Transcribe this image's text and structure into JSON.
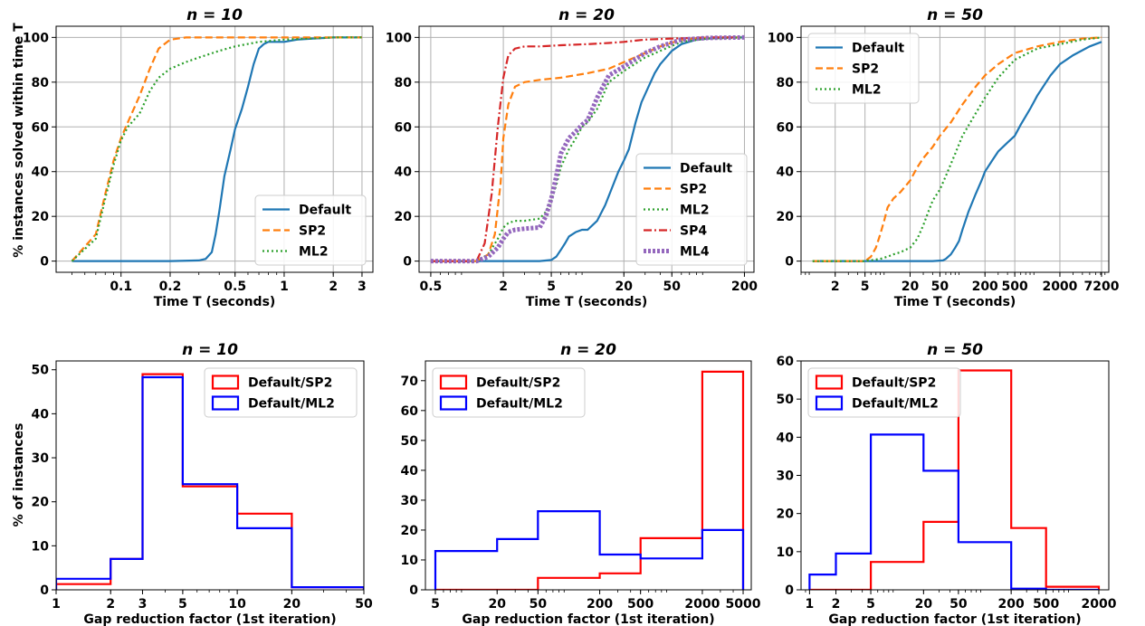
{
  "figure": {
    "ylabel_top": "% instances solved within time T",
    "ylabel_bottom": "% of instances"
  },
  "colors": {
    "Default": "#1f77b4",
    "SP2": "#ff7f0e",
    "ML2": "#2ca02c",
    "SP4": "#d62728",
    "ML4": "#9467bd",
    "Default/SP2": "#ff0000",
    "Default/ML2": "#0000ff"
  },
  "chart_data": [
    {
      "type": "line",
      "title": "n = 10",
      "xlabel": "Time T (seconds)",
      "ylabel": "% instances solved within time T",
      "xscale": "log",
      "xlim": [
        0.04,
        3.5
      ],
      "ylim": [
        -5,
        105
      ],
      "yticks": [
        0,
        20,
        40,
        60,
        80,
        100
      ],
      "xticks": [
        {
          "v": 0.1,
          "l": "0.1"
        },
        {
          "v": 0.2,
          "l": "0.2"
        },
        {
          "v": 0.5,
          "l": "0.5"
        },
        {
          "v": 1,
          "l": "1"
        },
        {
          "v": 2,
          "l": "2"
        },
        {
          "v": 3,
          "l": "3"
        }
      ],
      "grid": true,
      "legend": "lower-right",
      "series": [
        {
          "name": "Default",
          "style": "solid",
          "x": [
            0.05,
            0.1,
            0.2,
            0.3,
            0.33,
            0.36,
            0.38,
            0.4,
            0.43,
            0.47,
            0.5,
            0.55,
            0.6,
            0.65,
            0.7,
            0.75,
            0.8,
            0.9,
            1.0,
            1.2,
            1.5,
            2.0,
            3.0
          ],
          "y": [
            0,
            0,
            0,
            0.3,
            1,
            4,
            12,
            22,
            38,
            50,
            59,
            68,
            78,
            88,
            95,
            97,
            98,
            98,
            98,
            99,
            99.5,
            100,
            100
          ]
        },
        {
          "name": "SP2",
          "style": "dashed",
          "x": [
            0.05,
            0.07,
            0.08,
            0.09,
            0.1,
            0.11,
            0.13,
            0.15,
            0.17,
            0.2,
            0.25,
            0.3,
            0.5,
            1,
            3
          ],
          "y": [
            0,
            12,
            30,
            45,
            55,
            62,
            74,
            86,
            95,
            99,
            100,
            100,
            100,
            100,
            100
          ]
        },
        {
          "name": "ML2",
          "style": "dotted",
          "x": [
            0.05,
            0.07,
            0.08,
            0.09,
            0.1,
            0.11,
            0.13,
            0.15,
            0.17,
            0.2,
            0.25,
            0.3,
            0.4,
            0.5,
            0.7,
            1,
            1.5,
            2,
            3
          ],
          "y": [
            0,
            10,
            28,
            43,
            54,
            60,
            66,
            76,
            82,
            86,
            89,
            91,
            94,
            96,
            98,
            99,
            99.5,
            100,
            100
          ]
        }
      ]
    },
    {
      "type": "line",
      "title": "n = 20",
      "xlabel": "Time T (seconds)",
      "ylabel": "",
      "xscale": "log",
      "xlim": [
        0.4,
        240
      ],
      "ylim": [
        -5,
        105
      ],
      "yticks": [
        0,
        20,
        40,
        60,
        80,
        100
      ],
      "xticks": [
        {
          "v": 0.5,
          "l": "0.5"
        },
        {
          "v": 2,
          "l": "2"
        },
        {
          "v": 5,
          "l": "5"
        },
        {
          "v": 20,
          "l": "20"
        },
        {
          "v": 50,
          "l": "50"
        },
        {
          "v": 200,
          "l": "200"
        }
      ],
      "grid": true,
      "legend": "lower-right",
      "series": [
        {
          "name": "Default",
          "style": "solid",
          "x": [
            0.5,
            2,
            4,
            5,
            5.5,
            6,
            6.5,
            7,
            8,
            9,
            10,
            12,
            14,
            16,
            18,
            20,
            22,
            25,
            28,
            32,
            36,
            40,
            50,
            60,
            80,
            100,
            150,
            200
          ],
          "y": [
            0,
            0,
            0,
            0.5,
            2,
            5,
            8,
            11,
            13,
            14,
            14,
            18,
            25,
            33,
            40,
            45,
            50,
            62,
            71,
            78,
            84,
            88,
            94,
            97,
            99,
            99.5,
            100,
            100
          ]
        },
        {
          "name": "SP2",
          "style": "dashed",
          "x": [
            0.5,
            1.2,
            1.5,
            1.7,
            1.9,
            2.0,
            2.2,
            2.5,
            3,
            4,
            6,
            10,
            15,
            20,
            30,
            40,
            60,
            100,
            200
          ],
          "y": [
            0,
            0,
            3,
            12,
            35,
            55,
            70,
            78,
            80,
            81,
            82,
            84,
            86,
            89,
            93,
            96,
            99,
            100,
            100
          ]
        },
        {
          "name": "ML2",
          "style": "dotted",
          "x": [
            0.5,
            1.2,
            1.5,
            1.8,
            2.0,
            2.2,
            2.5,
            3,
            4,
            4.5,
            5,
            5.5,
            6,
            7,
            8,
            9,
            10,
            12,
            15,
            20,
            30,
            40,
            60,
            100,
            200
          ],
          "y": [
            0,
            0,
            3,
            10,
            15,
            17,
            18,
            18,
            19,
            22,
            27,
            34,
            42,
            50,
            55,
            60,
            62,
            68,
            80,
            85,
            91,
            94,
            98,
            99.5,
            100
          ]
        },
        {
          "name": "SP4",
          "style": "dashdot",
          "x": [
            0.5,
            1.2,
            1.4,
            1.6,
            1.8,
            2.0,
            2.2,
            2.5,
            3,
            4,
            6,
            10,
            15,
            20,
            30,
            50,
            100,
            200
          ],
          "y": [
            0,
            0,
            8,
            30,
            60,
            82,
            92,
            95,
            96,
            96,
            96.5,
            97,
            97.5,
            98,
            99,
            99.5,
            100,
            100
          ]
        },
        {
          "name": "ML4",
          "style": "thick-dotted",
          "x": [
            0.5,
            1.2,
            1.5,
            1.8,
            2.0,
            2.2,
            2.5,
            3,
            4,
            4.5,
            5,
            5.5,
            6,
            7,
            8,
            9,
            10,
            12,
            15,
            20,
            30,
            40,
            60,
            100,
            200
          ],
          "y": [
            0,
            0,
            2,
            6,
            10,
            13,
            14,
            14.5,
            15,
            20,
            28,
            38,
            48,
            55,
            58,
            61,
            63,
            73,
            83,
            87,
            93,
            96,
            99,
            99.8,
            100
          ]
        }
      ]
    },
    {
      "type": "line",
      "title": "n = 50",
      "xlabel": "Time T (seconds)",
      "ylabel": "",
      "xscale": "log",
      "xlim": [
        0.7,
        9000
      ],
      "ylim": [
        -5,
        105
      ],
      "yticks": [
        0,
        20,
        40,
        60,
        80,
        100
      ],
      "xticks": [
        {
          "v": 2,
          "l": "2"
        },
        {
          "v": 5,
          "l": "5"
        },
        {
          "v": 20,
          "l": "20"
        },
        {
          "v": 50,
          "l": "50"
        },
        {
          "v": 200,
          "l": "200"
        },
        {
          "v": 500,
          "l": "500"
        },
        {
          "v": 2000,
          "l": "2000"
        },
        {
          "v": 7200,
          "l": "7200"
        }
      ],
      "grid": true,
      "legend": "upper-left",
      "series": [
        {
          "name": "Default",
          "style": "solid",
          "x": [
            1,
            10,
            40,
            55,
            60,
            70,
            80,
            90,
            100,
            120,
            150,
            180,
            200,
            250,
            300,
            400,
            500,
            600,
            800,
            1000,
            1500,
            2000,
            3000,
            5000,
            7200
          ],
          "y": [
            0,
            0,
            0,
            0.3,
            1,
            3,
            6,
            9,
            14,
            22,
            30,
            36,
            40,
            45,
            49,
            53,
            56,
            61,
            68,
            74,
            83,
            88,
            92,
            96,
            98
          ]
        },
        {
          "name": "SP2",
          "style": "dashed",
          "x": [
            1,
            5,
            6,
            7,
            8,
            9,
            10,
            12,
            15,
            20,
            25,
            30,
            40,
            50,
            70,
            100,
            150,
            200,
            300,
            500,
            1000,
            2000,
            4000,
            7200
          ],
          "y": [
            0,
            0,
            2,
            6,
            12,
            18,
            24,
            28,
            31,
            36,
            42,
            46,
            51,
            56,
            62,
            70,
            78,
            83,
            88,
            93,
            96,
            98,
            99.5,
            100
          ]
        },
        {
          "name": "ML2",
          "style": "dotted",
          "x": [
            1,
            5,
            8,
            10,
            12,
            15,
            20,
            25,
            30,
            35,
            40,
            50,
            60,
            80,
            100,
            150,
            200,
            300,
            500,
            1000,
            2000,
            4000,
            7200
          ],
          "y": [
            0,
            0,
            1,
            2,
            3,
            4,
            6,
            10,
            16,
            22,
            27,
            32,
            38,
            48,
            56,
            66,
            73,
            82,
            90,
            95,
            97,
            99,
            100
          ]
        }
      ]
    },
    {
      "type": "bar",
      "title": "n = 10",
      "xlabel": "Gap reduction factor (1st iteration)",
      "ylabel": "% of instances",
      "xscale": "log",
      "xlim": [
        1,
        50
      ],
      "ylim": [
        0,
        52
      ],
      "yticks": [
        0,
        10,
        20,
        30,
        40,
        50
      ],
      "xticks": [
        {
          "v": 1,
          "l": "1"
        },
        {
          "v": 2,
          "l": "2"
        },
        {
          "v": 3,
          "l": "3"
        },
        {
          "v": 5,
          "l": "5"
        },
        {
          "v": 10,
          "l": "10"
        },
        {
          "v": 20,
          "l": "20"
        },
        {
          "v": 50,
          "l": "50"
        }
      ],
      "grid": false,
      "legend": "upper-right",
      "edges": [
        1,
        2,
        3,
        5,
        10,
        20,
        50
      ],
      "series": [
        {
          "name": "Default/SP2",
          "values": [
            1.3,
            7.0,
            49.0,
            23.5,
            17.3,
            0.6
          ]
        },
        {
          "name": "Default/ML2",
          "values": [
            2.5,
            7.0,
            48.3,
            24.0,
            14.0,
            0.6
          ]
        }
      ]
    },
    {
      "type": "bar",
      "title": "n = 20",
      "xlabel": "Gap reduction factor (1st iteration)",
      "ylabel": "",
      "xscale": "log",
      "xlim": [
        4,
        6000
      ],
      "ylim": [
        0,
        76.6
      ],
      "yticks": [
        0,
        10,
        20,
        30,
        40,
        50,
        60,
        70
      ],
      "xticks": [
        {
          "v": 5,
          "l": "5"
        },
        {
          "v": 20,
          "l": "20"
        },
        {
          "v": 50,
          "l": "50"
        },
        {
          "v": 200,
          "l": "200"
        },
        {
          "v": 500,
          "l": "500"
        },
        {
          "v": 2000,
          "l": "2000"
        },
        {
          "v": 5000,
          "l": "5000"
        }
      ],
      "grid": false,
      "legend": "upper-left",
      "edges": [
        5,
        20,
        50,
        200,
        500,
        2000,
        5000
      ],
      "series": [
        {
          "name": "Default/SP2",
          "values": [
            0,
            0,
            4.0,
            5.5,
            17.3,
            73.0
          ]
        },
        {
          "name": "Default/ML2",
          "values": [
            13.0,
            17.0,
            26.3,
            11.8,
            10.5,
            20.0
          ]
        }
      ]
    },
    {
      "type": "bar",
      "title": "n = 50",
      "xlabel": "Gap reduction factor (1st iteration)",
      "ylabel": "",
      "xscale": "log",
      "xlim": [
        0.8,
        2600
      ],
      "ylim": [
        0,
        60
      ],
      "yticks": [
        0,
        10,
        20,
        30,
        40,
        50,
        60
      ],
      "xticks": [
        {
          "v": 1,
          "l": "1"
        },
        {
          "v": 2,
          "l": "2"
        },
        {
          "v": 5,
          "l": "5"
        },
        {
          "v": 20,
          "l": "20"
        },
        {
          "v": 50,
          "l": "50"
        },
        {
          "v": 200,
          "l": "200"
        },
        {
          "v": 500,
          "l": "500"
        },
        {
          "v": 2000,
          "l": "2000"
        }
      ],
      "grid": false,
      "legend": "upper-left",
      "edges": [
        1,
        2,
        5,
        20,
        50,
        200,
        500,
        2000
      ],
      "series": [
        {
          "name": "Default/SP2",
          "values": [
            0,
            0,
            7.3,
            17.8,
            57.5,
            16.2,
            0.8
          ]
        },
        {
          "name": "Default/ML2",
          "values": [
            4.0,
            9.5,
            40.7,
            31.2,
            12.5,
            0.3,
            0
          ]
        }
      ]
    }
  ]
}
